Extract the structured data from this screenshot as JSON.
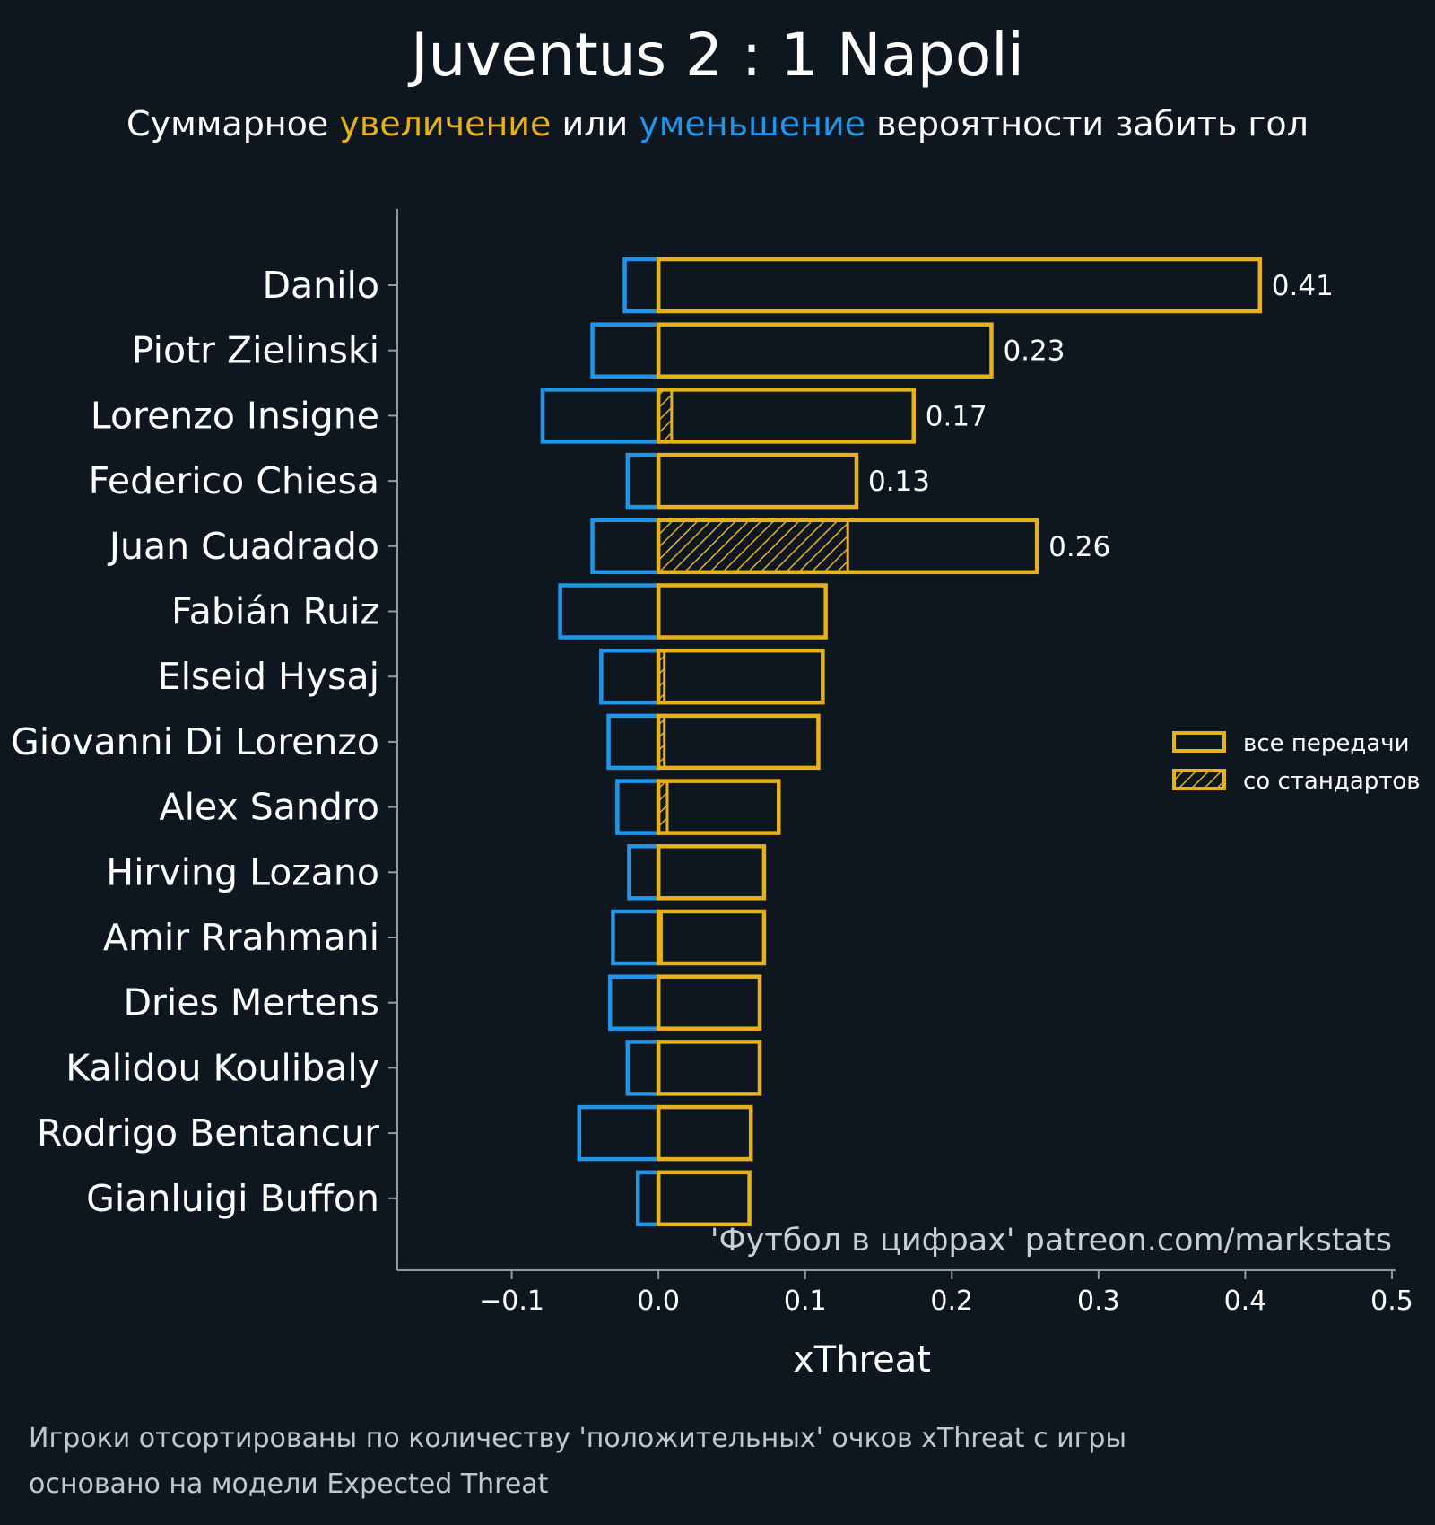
{
  "chart_data": {
    "type": "bar",
    "orientation": "horizontal",
    "title": "Juventus 2 : 1 Napoli",
    "subtitle": {
      "prefix": "Суммарное ",
      "positive_word": "увеличение",
      "middle": " или ",
      "negative_word": "уменьшение",
      "suffix": " вероятности забить гол"
    },
    "xlabel": "xThreat",
    "xlim": [
      -0.178,
      0.5
    ],
    "xticks": [
      -0.1,
      0.0,
      0.1,
      0.2,
      0.3,
      0.4,
      0.5
    ],
    "xtick_labels": [
      "−0.1",
      "0.0",
      "0.1",
      "0.2",
      "0.3",
      "0.4",
      "0.5"
    ],
    "players": [
      "Danilo",
      "Piotr Zielinski",
      "Lorenzo Insigne",
      "Federico Chiesa",
      "Juan Cuadrado",
      "Fabián Ruiz",
      "Elseid Hysaj",
      "Giovanni Di Lorenzo",
      "Alex Sandro",
      "Hirving Lozano",
      "Amir Rrahmani",
      "Dries Mertens",
      "Kalidou Koulibaly",
      "Rodrigo Bentancur",
      "Gianluigi Buffon"
    ],
    "series": [
      {
        "name": "positive",
        "legend": "все передачи",
        "color": "#e5b11c",
        "values": [
          0.41,
          0.227,
          0.174,
          0.135,
          0.258,
          0.114,
          0.112,
          0.109,
          0.082,
          0.072,
          0.072,
          0.069,
          0.069,
          0.063,
          0.062
        ]
      },
      {
        "name": "negative",
        "color": "#2196e8",
        "values": [
          -0.023,
          -0.045,
          -0.079,
          -0.021,
          -0.045,
          -0.067,
          -0.039,
          -0.034,
          -0.028,
          -0.02,
          -0.031,
          -0.033,
          -0.021,
          -0.054,
          -0.014
        ]
      },
      {
        "name": "set_pieces",
        "legend": "со стандартов",
        "color": "#e5b11c",
        "pattern": "hatched",
        "values": [
          0,
          0,
          0.009,
          0,
          0.129,
          0,
          0.004,
          0.004,
          0.006,
          0,
          0.002,
          0,
          0,
          0,
          0
        ]
      }
    ],
    "value_labels": [
      "0.41",
      "0.23",
      "0.17",
      "0.13",
      "0.26",
      "",
      "",
      "",
      "",
      "",
      "",
      "",
      "",
      "",
      ""
    ],
    "legend_position": "center-right",
    "credit": "'Футбол в цифрах' patreon.com/markstats"
  },
  "notes": {
    "line1": "Игроки отсортированы по количеству 'положительных' очков xThreat с игры",
    "line2": "основано на модели Expected Threat"
  },
  "colors": {
    "background": "#0e1720",
    "positive": "#e5b11c",
    "negative": "#2196e8",
    "axis": "#8f9aa3"
  }
}
